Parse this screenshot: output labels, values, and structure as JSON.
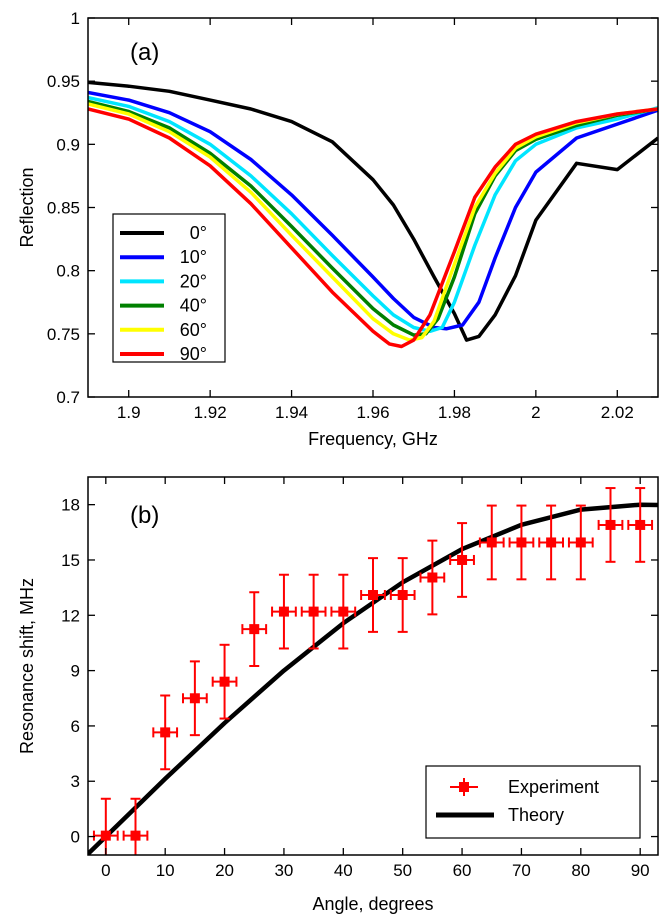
{
  "chart_data": [
    {
      "type": "line",
      "panel_label": "(a)",
      "xlabel": "Frequency, GHz",
      "ylabel": "Reflection",
      "xlim": [
        1.89,
        2.03
      ],
      "ylim": [
        0.7,
        1.0
      ],
      "xticks": [
        1.9,
        1.92,
        1.94,
        1.96,
        1.98,
        2.0,
        2.02
      ],
      "xtick_labels": [
        "1.9",
        "1.92",
        "1.94",
        "1.96",
        "1.98",
        "2",
        "2.02"
      ],
      "yticks": [
        0.7,
        0.75,
        0.8,
        0.85,
        0.9,
        0.95,
        1.0
      ],
      "ytick_labels": [
        "0.7",
        "0.75",
        "0.8",
        "0.85",
        "0.9",
        "0.95",
        "1"
      ],
      "grid": false,
      "legend_position": "middle-left",
      "series": [
        {
          "name": "0°",
          "color": "#000000",
          "x": [
            1.89,
            1.9,
            1.91,
            1.92,
            1.93,
            1.94,
            1.95,
            1.96,
            1.965,
            1.97,
            1.975,
            1.98,
            1.983,
            1.986,
            1.99,
            1.995,
            2.0,
            2.01,
            2.02,
            2.03
          ],
          "y": [
            0.949,
            0.946,
            0.942,
            0.935,
            0.928,
            0.918,
            0.902,
            0.872,
            0.852,
            0.825,
            0.795,
            0.766,
            0.745,
            0.748,
            0.765,
            0.796,
            0.84,
            0.885,
            0.88,
            0.905
          ]
        },
        {
          "name": "10°",
          "color": "#0000ff",
          "x": [
            1.89,
            1.9,
            1.91,
            1.92,
            1.93,
            1.94,
            1.95,
            1.96,
            1.965,
            1.97,
            1.975,
            1.978,
            1.982,
            1.986,
            1.99,
            1.995,
            2.0,
            2.01,
            2.02,
            2.03
          ],
          "y": [
            0.941,
            0.935,
            0.925,
            0.91,
            0.888,
            0.86,
            0.828,
            0.795,
            0.778,
            0.763,
            0.755,
            0.754,
            0.757,
            0.775,
            0.81,
            0.85,
            0.878,
            0.905,
            0.916,
            0.927
          ]
        },
        {
          "name": "20°",
          "color": "#00e5ff",
          "x": [
            1.89,
            1.9,
            1.91,
            1.92,
            1.93,
            1.94,
            1.95,
            1.96,
            1.965,
            1.97,
            1.974,
            1.977,
            1.98,
            1.985,
            1.99,
            1.995,
            2.0,
            2.01,
            2.02,
            2.03
          ],
          "y": [
            0.937,
            0.93,
            0.918,
            0.9,
            0.875,
            0.845,
            0.812,
            0.78,
            0.765,
            0.755,
            0.752,
            0.755,
            0.775,
            0.82,
            0.86,
            0.887,
            0.9,
            0.913,
            0.92,
            0.929
          ]
        },
        {
          "name": "40°",
          "color": "#008000",
          "x": [
            1.89,
            1.9,
            1.91,
            1.92,
            1.93,
            1.94,
            1.95,
            1.96,
            1.965,
            1.97,
            1.973,
            1.976,
            1.98,
            1.985,
            1.99,
            1.995,
            2.0,
            2.01,
            2.02,
            2.03
          ],
          "y": [
            0.934,
            0.926,
            0.913,
            0.893,
            0.867,
            0.835,
            0.802,
            0.77,
            0.757,
            0.749,
            0.75,
            0.762,
            0.795,
            0.845,
            0.875,
            0.895,
            0.904,
            0.915,
            0.923,
            0.928
          ]
        },
        {
          "name": "60°",
          "color": "#ffff00",
          "x": [
            1.89,
            1.9,
            1.91,
            1.92,
            1.93,
            1.94,
            1.95,
            1.96,
            1.965,
            1.969,
            1.972,
            1.975,
            1.98,
            1.985,
            1.99,
            1.995,
            2.0,
            2.01,
            2.02,
            2.03
          ],
          "y": [
            0.932,
            0.924,
            0.91,
            0.89,
            0.862,
            0.828,
            0.795,
            0.762,
            0.75,
            0.745,
            0.747,
            0.76,
            0.805,
            0.85,
            0.877,
            0.897,
            0.906,
            0.917,
            0.924,
            0.928
          ]
        },
        {
          "name": "90°",
          "color": "#ff0000",
          "x": [
            1.89,
            1.9,
            1.91,
            1.92,
            1.93,
            1.94,
            1.95,
            1.96,
            1.964,
            1.967,
            1.97,
            1.974,
            1.98,
            1.985,
            1.99,
            1.995,
            2.0,
            2.01,
            2.02,
            2.03
          ],
          "y": [
            0.928,
            0.92,
            0.905,
            0.883,
            0.853,
            0.818,
            0.783,
            0.752,
            0.742,
            0.74,
            0.745,
            0.765,
            0.815,
            0.858,
            0.882,
            0.9,
            0.908,
            0.918,
            0.924,
            0.928
          ]
        }
      ]
    },
    {
      "type": "scatter",
      "panel_label": "(b)",
      "xlabel": "Angle, degrees",
      "ylabel": "Resonance shift, MHz",
      "xlim": [
        -3,
        93
      ],
      "ylim": [
        -1,
        19.5
      ],
      "xticks": [
        0,
        10,
        20,
        30,
        40,
        50,
        60,
        70,
        80,
        90
      ],
      "xtick_labels": [
        "0",
        "10",
        "20",
        "30",
        "40",
        "50",
        "60",
        "70",
        "80",
        "90"
      ],
      "yticks": [
        0,
        3,
        6,
        9,
        12,
        15,
        18
      ],
      "ytick_labels": [
        "0",
        "3",
        "6",
        "9",
        "12",
        "15",
        "18"
      ],
      "grid": false,
      "legend_position": "bottom-right",
      "series": [
        {
          "name": "Experiment",
          "kind": "errorbar",
          "color": "#ff0000",
          "x": [
            0,
            5,
            10,
            15,
            20,
            25,
            30,
            35,
            40,
            45,
            50,
            55,
            60,
            65,
            70,
            75,
            80,
            85,
            90
          ],
          "y": [
            0.05,
            0.05,
            5.65,
            7.5,
            8.4,
            11.25,
            12.2,
            12.2,
            12.2,
            13.1,
            13.1,
            14.05,
            15.0,
            15.95,
            15.95,
            15.95,
            15.95,
            16.9,
            16.9
          ],
          "x_error": 2,
          "y_error": 2
        },
        {
          "name": "Theory",
          "kind": "line",
          "color": "#000000",
          "formula": "18*sin(angle)",
          "x": [
            -3,
            0,
            10,
            20,
            30,
            40,
            50,
            60,
            70,
            80,
            90,
            93
          ],
          "y": [
            -0.94,
            0.0,
            3.13,
            6.16,
            9.0,
            11.57,
            13.79,
            15.59,
            16.91,
            17.73,
            18.0,
            17.98
          ]
        }
      ]
    }
  ]
}
